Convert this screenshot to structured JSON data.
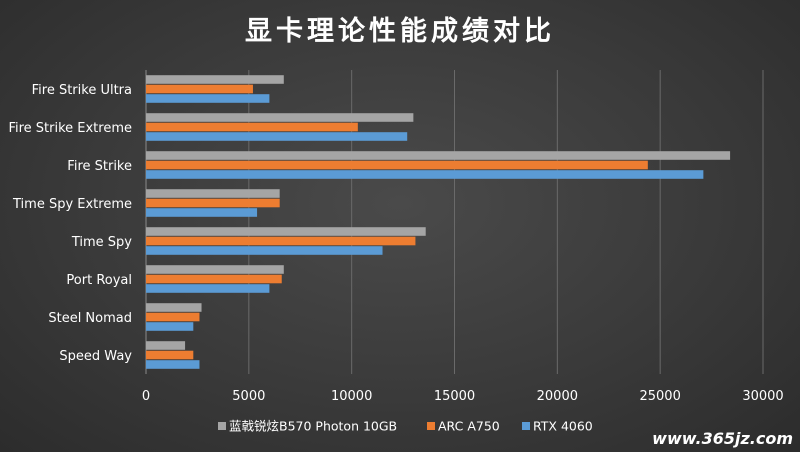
{
  "chart_data": {
    "type": "bar",
    "orientation": "horizontal",
    "title": "显卡理论性能成绩对比",
    "categories": [
      "Fire Strike Ultra",
      "Fire Strike Extreme",
      "Fire Strike",
      "Time Spy Extreme",
      "Time Spy",
      "Port Royal",
      "Steel Nomad",
      "Speed Way"
    ],
    "series": [
      {
        "name": "蓝戟锐炫B570 Photon 10GB",
        "color": "#a5a5a5",
        "values": [
          6700,
          13000,
          28400,
          6500,
          13600,
          6700,
          2700,
          1900
        ]
      },
      {
        "name": "ARC A750",
        "color": "#ed7d31",
        "values": [
          5200,
          10300,
          24400,
          6500,
          13100,
          6600,
          2600,
          2300
        ]
      },
      {
        "name": "RTX 4060",
        "color": "#5b9bd5",
        "values": [
          6000,
          12700,
          27100,
          5400,
          11500,
          6000,
          2300,
          2600
        ]
      }
    ],
    "xlim": [
      0,
      30000
    ],
    "xticks": [
      0,
      5000,
      10000,
      15000,
      20000,
      25000,
      30000
    ],
    "grid": true,
    "legend_position": "bottom"
  },
  "watermark": "www.365jz.com"
}
